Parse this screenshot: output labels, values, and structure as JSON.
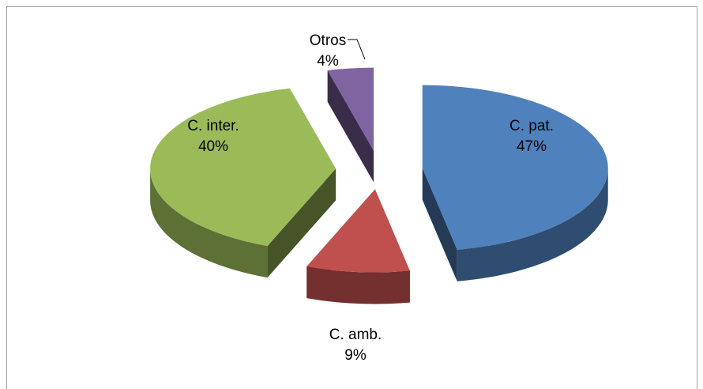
{
  "chart_data": {
    "type": "pie",
    "categories": [
      "C. pat.",
      "C. amb.",
      "C. inter.",
      "Otros"
    ],
    "values": [
      47,
      9,
      40,
      4
    ],
    "value_labels": [
      "47%",
      "9%",
      "40%",
      "4%"
    ],
    "colors": [
      "#4f81bd",
      "#c0504d",
      "#9bbb59",
      "#8064a2"
    ]
  }
}
